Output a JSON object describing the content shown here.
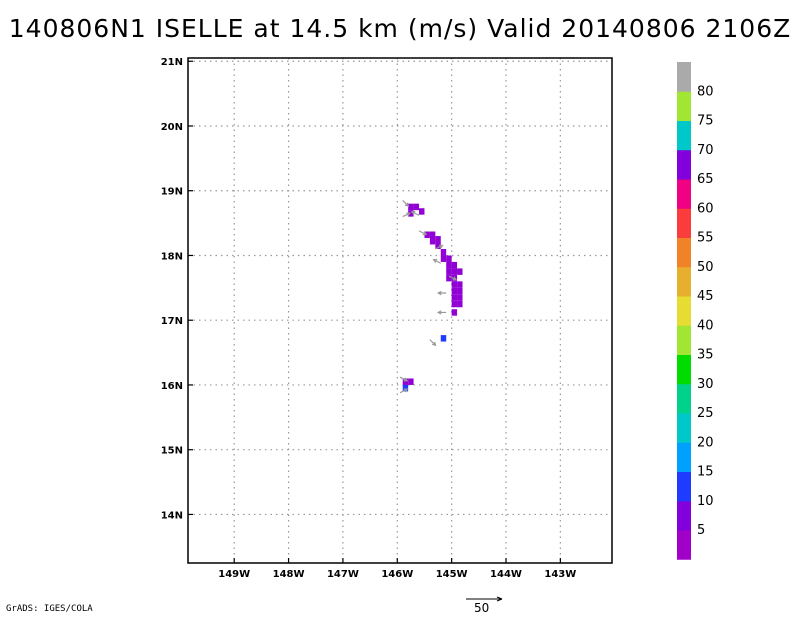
{
  "title": "140806N1 ISELLE at 14.5 km (m/s) Valid 20140806 2106Z",
  "credit": "GrADS: IGES/COLA",
  "reference_vector_label": "50",
  "chart_data": {
    "type": "heatmap",
    "map_projection": "lat-lon",
    "xlim": [
      -149.85,
      -142.05
    ],
    "ylim": [
      13.25,
      21.05
    ],
    "x_ticks": [
      {
        "value": -149,
        "label": "149W"
      },
      {
        "value": -148,
        "label": "148W"
      },
      {
        "value": -147,
        "label": "147W"
      },
      {
        "value": -146,
        "label": "146W"
      },
      {
        "value": -145,
        "label": "145W"
      },
      {
        "value": -144,
        "label": "144W"
      },
      {
        "value": -143,
        "label": "143W"
      }
    ],
    "y_ticks": [
      {
        "value": 14,
        "label": "14N"
      },
      {
        "value": 15,
        "label": "15N"
      },
      {
        "value": 16,
        "label": "16N"
      },
      {
        "value": 17,
        "label": "17N"
      },
      {
        "value": 18,
        "label": "18N"
      },
      {
        "value": 19,
        "label": "19N"
      },
      {
        "value": 20,
        "label": "20N"
      },
      {
        "value": 21,
        "label": "21N"
      }
    ],
    "grid": true,
    "colorbar": {
      "placement": "right",
      "colors": [
        "#a000c8",
        "#8200dc",
        "#1e3cff",
        "#00a0ff",
        "#00c8c8",
        "#00d28c",
        "#00dc00",
        "#a0e632",
        "#e6dc32",
        "#e6af2d",
        "#f08228",
        "#fa3c3c",
        "#f00082",
        "#8200dc",
        "#00c8c8",
        "#a0e632",
        "#aaaaaa"
      ],
      "labels": [
        "5",
        "10",
        "15",
        "20",
        "25",
        "30",
        "35",
        "40",
        "45",
        "50",
        "55",
        "60",
        "65",
        "70",
        "75",
        "80"
      ]
    },
    "cells": [
      {
        "lon": -145.75,
        "lat": 18.75,
        "value": 5
      },
      {
        "lon": -145.65,
        "lat": 18.75,
        "value": 5
      },
      {
        "lon": -145.75,
        "lat": 18.65,
        "value": 5
      },
      {
        "lon": -145.55,
        "lat": 18.68,
        "value": 5
      },
      {
        "lon": -145.45,
        "lat": 18.32,
        "value": 5
      },
      {
        "lon": -145.35,
        "lat": 18.32,
        "value": 5
      },
      {
        "lon": -145.35,
        "lat": 18.22,
        "value": 5
      },
      {
        "lon": -145.25,
        "lat": 18.25,
        "value": 5
      },
      {
        "lon": -145.25,
        "lat": 18.15,
        "value": 5
      },
      {
        "lon": -145.15,
        "lat": 18.05,
        "value": 5
      },
      {
        "lon": -145.15,
        "lat": 17.95,
        "value": 5
      },
      {
        "lon": -145.05,
        "lat": 17.95,
        "value": 5
      },
      {
        "lon": -145.05,
        "lat": 17.85,
        "value": 5
      },
      {
        "lon": -144.95,
        "lat": 17.85,
        "value": 5
      },
      {
        "lon": -145.05,
        "lat": 17.75,
        "value": 5
      },
      {
        "lon": -144.95,
        "lat": 17.75,
        "value": 5
      },
      {
        "lon": -144.85,
        "lat": 17.75,
        "value": 5
      },
      {
        "lon": -145.05,
        "lat": 17.65,
        "value": 5
      },
      {
        "lon": -144.95,
        "lat": 17.65,
        "value": 5
      },
      {
        "lon": -144.95,
        "lat": 17.55,
        "value": 5
      },
      {
        "lon": -144.85,
        "lat": 17.55,
        "value": 5
      },
      {
        "lon": -144.95,
        "lat": 17.45,
        "value": 5
      },
      {
        "lon": -144.85,
        "lat": 17.45,
        "value": 5
      },
      {
        "lon": -144.95,
        "lat": 17.35,
        "value": 5
      },
      {
        "lon": -144.85,
        "lat": 17.35,
        "value": 5
      },
      {
        "lon": -144.95,
        "lat": 17.25,
        "value": 5
      },
      {
        "lon": -144.85,
        "lat": 17.25,
        "value": 5
      },
      {
        "lon": -144.95,
        "lat": 17.12,
        "value": 5
      },
      {
        "lon": -145.15,
        "lat": 16.72,
        "value": 10
      },
      {
        "lon": -145.85,
        "lat": 16.05,
        "value": 5
      },
      {
        "lon": -145.75,
        "lat": 16.05,
        "value": 5
      },
      {
        "lon": -145.85,
        "lat": 15.95,
        "value": 10
      }
    ],
    "wind_vectors": [
      {
        "lon": -145.9,
        "lat": 18.85,
        "u": 2,
        "v": -2
      },
      {
        "lon": -145.9,
        "lat": 18.6,
        "u": 2,
        "v": 1
      },
      {
        "lon": -145.6,
        "lat": 18.62,
        "u": -2,
        "v": 1
      },
      {
        "lon": -145.6,
        "lat": 18.38,
        "u": 2,
        "v": -1
      },
      {
        "lon": -145.3,
        "lat": 18.1,
        "u": 2,
        "v": 1
      },
      {
        "lon": -145.2,
        "lat": 17.88,
        "u": -2,
        "v": 1
      },
      {
        "lon": -145.05,
        "lat": 17.68,
        "u": 2,
        "v": -1
      },
      {
        "lon": -145.1,
        "lat": 17.42,
        "u": -2,
        "v": 0
      },
      {
        "lon": -145.1,
        "lat": 17.12,
        "u": -2,
        "v": 0
      },
      {
        "lon": -145.4,
        "lat": 16.7,
        "u": 2,
        "v": -2
      },
      {
        "lon": -145.95,
        "lat": 16.12,
        "u": 2,
        "v": -1
      },
      {
        "lon": -145.95,
        "lat": 15.88,
        "u": 2,
        "v": 1
      }
    ]
  }
}
